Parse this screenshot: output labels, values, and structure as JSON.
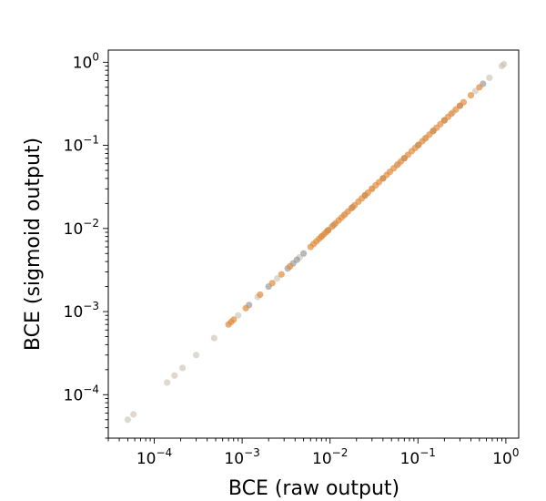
{
  "chart_data": {
    "type": "scatter",
    "title": "",
    "xlabel": "BCE (raw output)",
    "ylabel": "BCE (sigmoid output)",
    "x_scale": "log",
    "y_scale": "log",
    "xlim": [
      3e-05,
      1.4
    ],
    "ylim": [
      3e-05,
      1.4
    ],
    "grid": false,
    "legend": "none",
    "x_ticks": [
      {
        "base": "10",
        "exp": "−4",
        "value": 0.0001
      },
      {
        "base": "10",
        "exp": "−3",
        "value": 0.001
      },
      {
        "base": "10",
        "exp": "−2",
        "value": 0.01
      },
      {
        "base": "10",
        "exp": "−1",
        "value": 0.1
      },
      {
        "base": "10",
        "exp": "0",
        "value": 1
      }
    ],
    "y_ticks": [
      {
        "base": "10",
        "exp": "−4",
        "value": 0.0001
      },
      {
        "base": "10",
        "exp": "−3",
        "value": 0.001
      },
      {
        "base": "10",
        "exp": "−2",
        "value": 0.01
      },
      {
        "base": "10",
        "exp": "−1",
        "value": 0.1
      },
      {
        "base": "10",
        "exp": "0",
        "value": 1
      }
    ],
    "series": [
      {
        "color": "#c4b8a8",
        "marker": "circle",
        "alpha": 0.55,
        "points": [
          [
            5e-05,
            5e-05
          ],
          [
            5.8e-05,
            5.8e-05
          ],
          [
            0.00014,
            0.00014
          ],
          [
            0.00017,
            0.00017
          ],
          [
            0.00021,
            0.00021
          ],
          [
            0.0003,
            0.0003
          ],
          [
            0.00048,
            0.00048
          ],
          [
            0.0009,
            0.0009
          ],
          [
            0.0015,
            0.0015
          ],
          [
            0.0025,
            0.0025
          ],
          [
            0.0045,
            0.0045
          ],
          [
            0.008,
            0.008
          ],
          [
            0.015,
            0.015
          ],
          [
            0.03,
            0.03
          ],
          [
            0.06,
            0.06
          ],
          [
            0.12,
            0.12
          ],
          [
            0.25,
            0.25
          ],
          [
            0.45,
            0.45
          ],
          [
            0.65,
            0.65
          ],
          [
            0.9,
            0.9
          ],
          [
            0.95,
            0.95
          ]
        ]
      },
      {
        "color": "#8a8a8a",
        "marker": "circle",
        "alpha": 0.6,
        "points": [
          [
            0.0012,
            0.0012
          ],
          [
            0.002,
            0.002
          ],
          [
            0.0033,
            0.0033
          ],
          [
            0.0038,
            0.0038
          ],
          [
            0.0042,
            0.0042
          ],
          [
            0.005,
            0.005
          ],
          [
            0.0095,
            0.0095
          ],
          [
            0.011,
            0.011
          ],
          [
            0.018,
            0.018
          ],
          [
            0.025,
            0.025
          ],
          [
            0.04,
            0.04
          ],
          [
            0.07,
            0.07
          ],
          [
            0.1,
            0.1
          ],
          [
            0.15,
            0.15
          ],
          [
            0.2,
            0.2
          ],
          [
            0.3,
            0.3
          ],
          [
            0.55,
            0.55
          ]
        ]
      },
      {
        "color": "#e08a3a",
        "marker": "circle",
        "alpha": 0.7,
        "points": [
          [
            0.0007,
            0.0007
          ],
          [
            0.00075,
            0.00075
          ],
          [
            0.0008,
            0.0008
          ],
          [
            0.0011,
            0.0011
          ],
          [
            0.0016,
            0.0016
          ],
          [
            0.0022,
            0.0022
          ],
          [
            0.0028,
            0.0028
          ],
          [
            0.0035,
            0.0035
          ],
          [
            0.006,
            0.006
          ],
          [
            0.0065,
            0.0065
          ],
          [
            0.007,
            0.007
          ],
          [
            0.0075,
            0.0075
          ],
          [
            0.008,
            0.008
          ],
          [
            0.0085,
            0.0085
          ],
          [
            0.009,
            0.009
          ],
          [
            0.0095,
            0.0095
          ],
          [
            0.0105,
            0.0105
          ],
          [
            0.0115,
            0.0115
          ],
          [
            0.0125,
            0.0125
          ],
          [
            0.0135,
            0.0135
          ],
          [
            0.0145,
            0.0145
          ],
          [
            0.016,
            0.016
          ],
          [
            0.0175,
            0.0175
          ],
          [
            0.019,
            0.019
          ],
          [
            0.021,
            0.021
          ],
          [
            0.023,
            0.023
          ],
          [
            0.025,
            0.025
          ],
          [
            0.027,
            0.027
          ],
          [
            0.03,
            0.03
          ],
          [
            0.033,
            0.033
          ],
          [
            0.036,
            0.036
          ],
          [
            0.04,
            0.04
          ],
          [
            0.044,
            0.044
          ],
          [
            0.048,
            0.048
          ],
          [
            0.053,
            0.053
          ],
          [
            0.058,
            0.058
          ],
          [
            0.064,
            0.064
          ],
          [
            0.07,
            0.07
          ],
          [
            0.077,
            0.077
          ],
          [
            0.085,
            0.085
          ],
          [
            0.093,
            0.093
          ],
          [
            0.102,
            0.102
          ],
          [
            0.112,
            0.112
          ],
          [
            0.123,
            0.123
          ],
          [
            0.135,
            0.135
          ],
          [
            0.148,
            0.148
          ],
          [
            0.163,
            0.163
          ],
          [
            0.18,
            0.18
          ],
          [
            0.2,
            0.2
          ],
          [
            0.22,
            0.22
          ],
          [
            0.24,
            0.24
          ],
          [
            0.27,
            0.27
          ],
          [
            0.3,
            0.3
          ],
          [
            0.33,
            0.33
          ],
          [
            0.4,
            0.4
          ],
          [
            0.5,
            0.5
          ]
        ]
      }
    ]
  }
}
